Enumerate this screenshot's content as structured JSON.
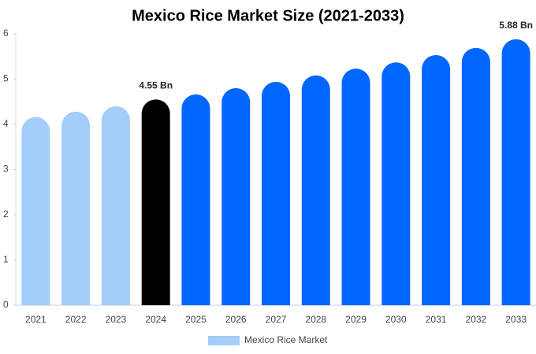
{
  "chart_data": {
    "type": "bar",
    "title": "Mexico Rice Market Size (2021-2033)",
    "categories": [
      "2021",
      "2022",
      "2023",
      "2024",
      "2025",
      "2026",
      "2027",
      "2028",
      "2029",
      "2030",
      "2031",
      "2032",
      "2033"
    ],
    "series": [
      {
        "name": "Mexico Rice Market",
        "color": "#a3cdfb",
        "values": [
          4.16,
          4.28,
          4.4,
          4.55,
          4.66,
          4.8,
          4.94,
          5.08,
          5.23,
          5.37,
          5.53,
          5.69,
          5.88
        ],
        "colors": [
          "#a3cdfb",
          "#a3cdfb",
          "#a3cdfb",
          "#000000",
          "#0066ff",
          "#0066ff",
          "#0066ff",
          "#0066ff",
          "#0066ff",
          "#0066ff",
          "#0066ff",
          "#0066ff",
          "#0066ff"
        ],
        "value_labels": [
          null,
          null,
          null,
          "4.55 Bn",
          null,
          null,
          null,
          null,
          null,
          null,
          null,
          null,
          "5.88 Bn"
        ]
      }
    ],
    "ylim": [
      0,
      6
    ],
    "yticks": [
      0,
      1,
      2,
      3,
      4,
      5,
      6
    ],
    "legend": "bottom"
  }
}
